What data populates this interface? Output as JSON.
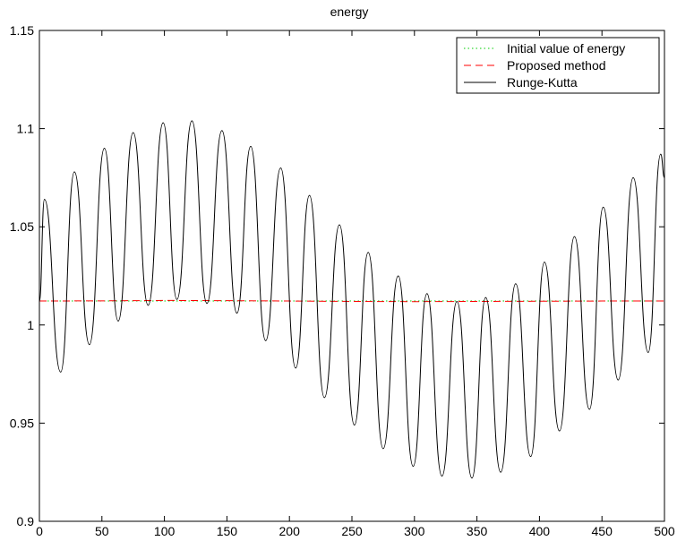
{
  "chart_data": {
    "type": "line",
    "title": "energy",
    "xlabel": "",
    "ylabel": "",
    "xlim": [
      0,
      500
    ],
    "ylim": [
      0.9,
      1.15
    ],
    "x_ticks": [
      0,
      50,
      100,
      150,
      200,
      250,
      300,
      350,
      400,
      450,
      500
    ],
    "x_tick_labels": [
      "0",
      "50",
      "100",
      "150",
      "200",
      "250",
      "300",
      "350",
      "400",
      "450",
      "500"
    ],
    "y_ticks": [
      0.9,
      0.95,
      1.0,
      1.05,
      1.1,
      1.15
    ],
    "y_tick_labels": [
      "0.9",
      "0.95",
      "1",
      "1.05",
      "1.1",
      "1.15"
    ],
    "grid": false,
    "legend_position": "top-right",
    "series": [
      {
        "name": "Initial value of energy",
        "color": "#00cc00",
        "style": "dotted",
        "x": [
          0,
          500
        ],
        "y": [
          1.0122,
          1.0122
        ]
      },
      {
        "name": "Proposed method",
        "color": "#ff0000",
        "style": "dashed",
        "x": [
          0,
          50,
          100,
          150,
          200,
          250,
          300,
          350,
          400,
          450,
          500
        ],
        "y": [
          1.0122,
          1.0123,
          1.0125,
          1.0124,
          1.0122,
          1.012,
          1.0119,
          1.012,
          1.0121,
          1.0122,
          1.0122
        ]
      },
      {
        "name": "Runge-Kutta",
        "color": "#000000",
        "style": "solid",
        "x": [
          0,
          4,
          17,
          28,
          40,
          52,
          63,
          75,
          87,
          99,
          110,
          122,
          134,
          146,
          158,
          169,
          181,
          193,
          205,
          216,
          228,
          240,
          252,
          263,
          275,
          287,
          299,
          310,
          322,
          334,
          346,
          357,
          369,
          381,
          393,
          404,
          416,
          428,
          440,
          451,
          463,
          475,
          487,
          497,
          500
        ],
        "y": [
          1.012,
          1.064,
          0.976,
          1.078,
          0.99,
          1.09,
          1.002,
          1.098,
          1.01,
          1.103,
          1.013,
          1.104,
          1.011,
          1.099,
          1.006,
          1.091,
          0.992,
          1.08,
          0.978,
          1.066,
          0.963,
          1.051,
          0.949,
          1.037,
          0.937,
          1.025,
          0.928,
          1.016,
          0.923,
          1.012,
          0.922,
          1.014,
          0.925,
          1.021,
          0.933,
          1.032,
          0.946,
          1.045,
          0.957,
          1.06,
          0.972,
          1.075,
          0.986,
          1.087,
          1.075
        ]
      }
    ]
  }
}
